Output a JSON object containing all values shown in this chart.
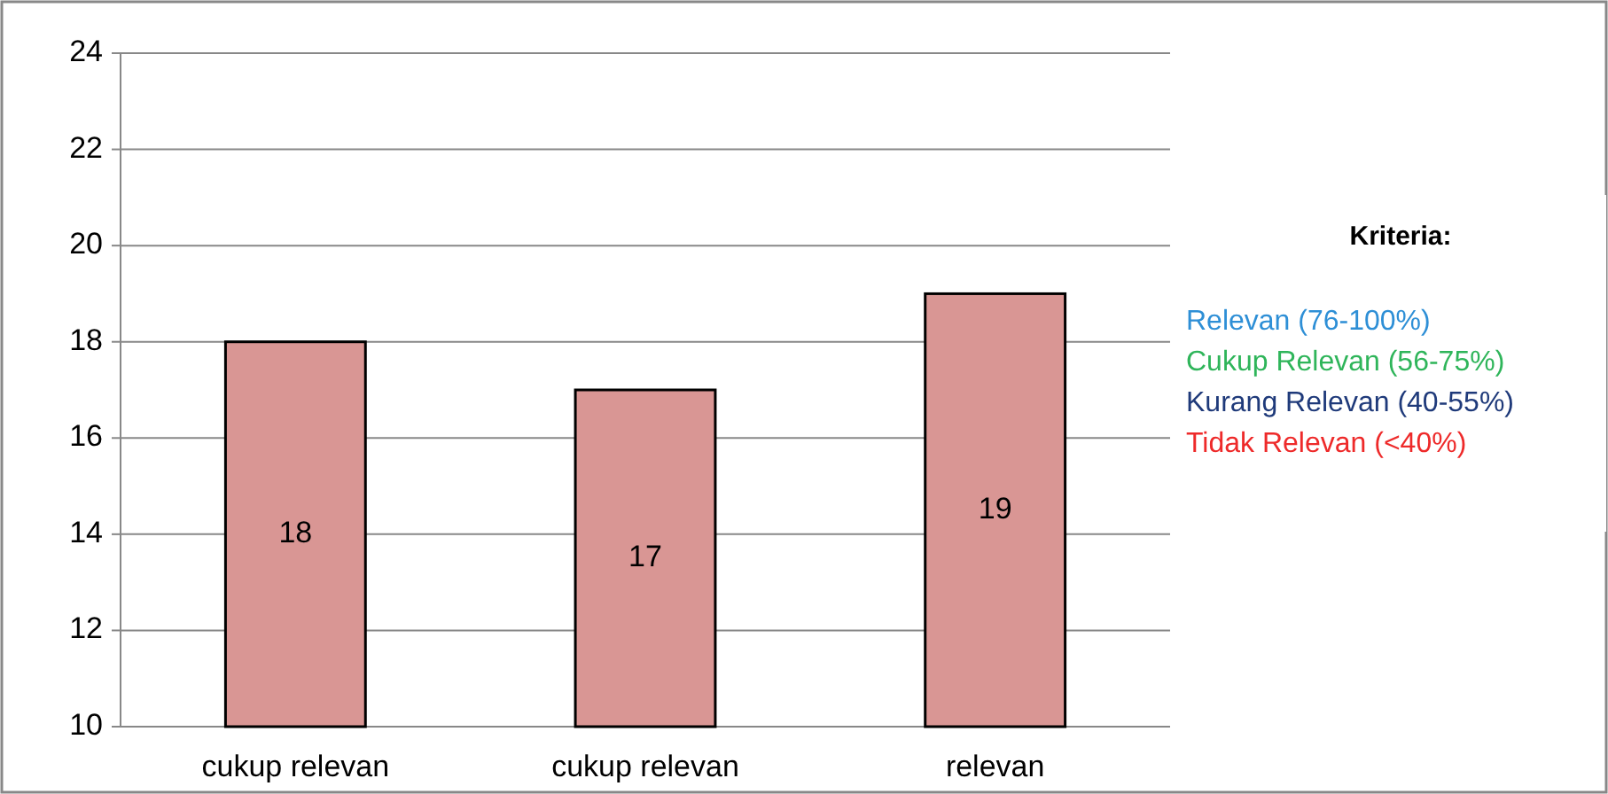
{
  "chart_data": {
    "type": "bar",
    "categories": [
      "cukup relevan",
      "cukup relevan",
      "relevan"
    ],
    "values": [
      18,
      17,
      19
    ],
    "color": "#d99694",
    "data_labels": true,
    "ylim": [
      10,
      24
    ],
    "yticks": [
      10,
      12,
      14,
      16,
      18,
      20,
      22,
      24
    ],
    "grid": "y",
    "annotations": [
      "Kriteria:",
      "Relevan  (76-100%)",
      "Cukup Relevan  (56-75%)",
      "Kurang Relevan   (40-55%)",
      "Tidak Relevan  (<40%)"
    ]
  }
}
